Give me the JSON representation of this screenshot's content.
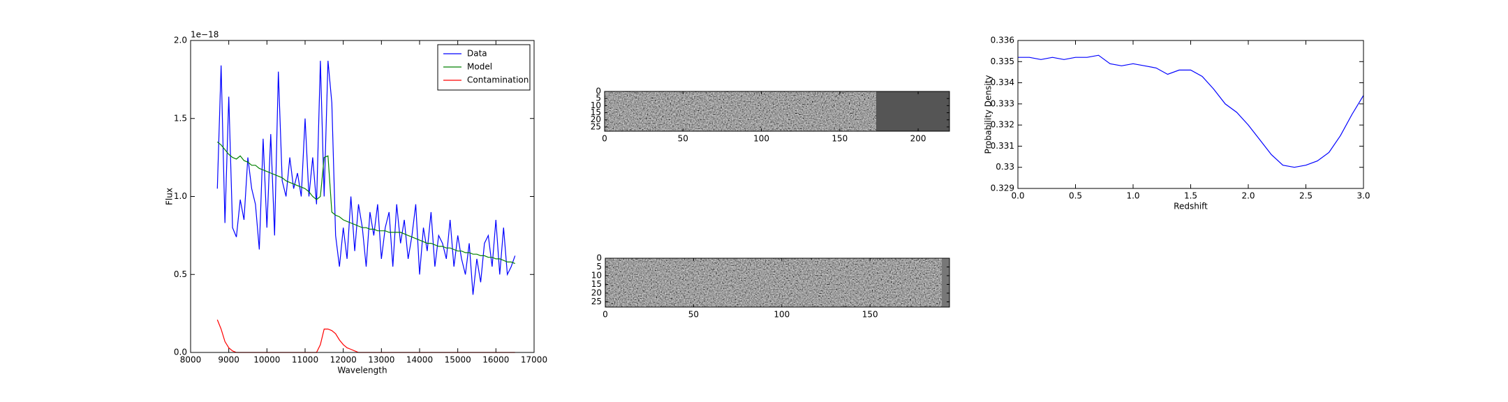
{
  "chart_data": [
    {
      "type": "line",
      "xlabel": "Wavelength",
      "ylabel": "Flux",
      "offset_label": "1e−18",
      "legend": "upper right",
      "xlim": [
        8000,
        17000
      ],
      "xticks": [
        8000,
        9000,
        10000,
        11000,
        12000,
        13000,
        14000,
        15000,
        16000,
        17000
      ],
      "ylim": [
        0,
        2.0
      ],
      "yticks": [
        {
          "value": 0,
          "label": "0.0"
        },
        0.5,
        {
          "value": 1,
          "label": "1.0"
        },
        1.5,
        {
          "value": 2,
          "label": "2.0"
        }
      ],
      "x": [
        8700,
        8800,
        8900,
        9000,
        9100,
        9200,
        9300,
        9400,
        9500,
        9600,
        9700,
        9800,
        9900,
        10000,
        10100,
        10200,
        10300,
        10400,
        10500,
        10600,
        10700,
        10800,
        10900,
        11000,
        11100,
        11200,
        11300,
        11400,
        11500,
        11600,
        11700,
        11800,
        11900,
        12000,
        12100,
        12200,
        12300,
        12400,
        12500,
        12600,
        12700,
        12800,
        12900,
        13000,
        13100,
        13200,
        13300,
        13400,
        13500,
        13600,
        13700,
        13800,
        13900,
        14000,
        14100,
        14200,
        14300,
        14400,
        14500,
        14600,
        14700,
        14800,
        14900,
        15000,
        15100,
        15200,
        15300,
        15400,
        15500,
        15600,
        15700,
        15800,
        15900,
        16000,
        16100,
        16200,
        16300,
        16400,
        16500
      ],
      "series": [
        {
          "name": "Data",
          "color": "#0000ff",
          "values": [
            1.05,
            1.84,
            0.83,
            1.64,
            0.8,
            0.74,
            0.98,
            0.85,
            1.25,
            1.05,
            0.95,
            0.66,
            1.37,
            0.8,
            1.4,
            0.75,
            1.8,
            1.1,
            1.0,
            1.25,
            1.05,
            1.15,
            1.0,
            1.5,
            1.0,
            1.25,
            0.95,
            1.87,
            1.0,
            1.87,
            1.6,
            0.75,
            0.55,
            0.8,
            0.6,
            1.0,
            0.65,
            0.95,
            0.8,
            0.55,
            0.9,
            0.75,
            0.95,
            0.6,
            0.8,
            0.9,
            0.55,
            0.95,
            0.7,
            0.85,
            0.6,
            0.75,
            0.95,
            0.5,
            0.8,
            0.65,
            0.9,
            0.55,
            0.75,
            0.7,
            0.6,
            0.85,
            0.55,
            0.75,
            0.6,
            0.5,
            0.7,
            0.37,
            0.6,
            0.45,
            0.7,
            0.75,
            0.55,
            0.85,
            0.5,
            0.8,
            0.5,
            0.55,
            0.62
          ]
        },
        {
          "name": "Model",
          "color": "#008000",
          "values": [
            1.35,
            1.33,
            1.3,
            1.27,
            1.25,
            1.24,
            1.26,
            1.23,
            1.22,
            1.2,
            1.2,
            1.18,
            1.17,
            1.16,
            1.15,
            1.14,
            1.13,
            1.12,
            1.1,
            1.09,
            1.08,
            1.07,
            1.06,
            1.05,
            1.03,
            1.0,
            0.98,
            1.0,
            1.25,
            1.26,
            0.9,
            0.88,
            0.87,
            0.85,
            0.84,
            0.83,
            0.82,
            0.81,
            0.8,
            0.8,
            0.79,
            0.79,
            0.78,
            0.78,
            0.78,
            0.77,
            0.77,
            0.77,
            0.77,
            0.76,
            0.75,
            0.74,
            0.73,
            0.72,
            0.71,
            0.7,
            0.7,
            0.69,
            0.68,
            0.68,
            0.67,
            0.67,
            0.66,
            0.65,
            0.65,
            0.64,
            0.64,
            0.63,
            0.63,
            0.62,
            0.62,
            0.61,
            0.61,
            0.6,
            0.6,
            0.59,
            0.58,
            0.58,
            0.57
          ]
        },
        {
          "name": "Contamination",
          "color": "#ff0000",
          "values": [
            0.21,
            0.15,
            0.07,
            0.03,
            0.01,
            0,
            0,
            0,
            0,
            0,
            0,
            0,
            0,
            0,
            0,
            0,
            0,
            0,
            0,
            0,
            0,
            0,
            0,
            0,
            0,
            0,
            0,
            0.05,
            0.15,
            0.15,
            0.14,
            0.12,
            0.08,
            0.05,
            0.03,
            0.02,
            0.01,
            0,
            0,
            0,
            0,
            0,
            0,
            0,
            0,
            0,
            0,
            0,
            0,
            0,
            0,
            0,
            0,
            0,
            0,
            0,
            0,
            0,
            0,
            0,
            0,
            0,
            0,
            0,
            0,
            0,
            0,
            0,
            0,
            0,
            0,
            0,
            0,
            0,
            0,
            0,
            0,
            0,
            0
          ]
        }
      ]
    },
    {
      "type": "image",
      "xlim": [
        0,
        220
      ],
      "xticks": [
        0,
        50,
        100,
        150,
        200
      ],
      "ylim": [
        28,
        0
      ],
      "yticks": [
        0,
        5,
        10,
        15,
        20,
        25
      ]
    },
    {
      "type": "image",
      "xlim": [
        0,
        195
      ],
      "xticks": [
        0,
        50,
        100,
        150
      ],
      "ylim": [
        28,
        0
      ],
      "yticks": [
        0,
        5,
        10,
        15,
        20,
        25
      ]
    },
    {
      "type": "line",
      "xlabel": "Redshift",
      "ylabel": "Probability Density",
      "xlim": [
        0,
        3.0
      ],
      "xticks": [
        {
          "value": 0,
          "label": "0.0"
        },
        0.5,
        {
          "value": 1,
          "label": "1.0"
        },
        1.5,
        {
          "value": 2,
          "label": "2.0"
        },
        2.5,
        {
          "value": 3,
          "label": "3.0"
        }
      ],
      "ylim": [
        0.329,
        0.336
      ],
      "yticks": [
        0.329,
        0.33,
        0.331,
        0.332,
        0.333,
        0.334,
        0.335,
        0.336
      ],
      "x": [
        0,
        0.1,
        0.2,
        0.3,
        0.4,
        0.5,
        0.6,
        0.7,
        0.8,
        0.9,
        1.0,
        1.1,
        1.2,
        1.3,
        1.4,
        1.5,
        1.6,
        1.7,
        1.8,
        1.9,
        2.0,
        2.1,
        2.2,
        2.3,
        2.4,
        2.5,
        2.6,
        2.7,
        2.8,
        2.9,
        3.0
      ],
      "series": [
        {
          "color": "#0000ff",
          "values": [
            0.3352,
            0.3352,
            0.3351,
            0.3352,
            0.3351,
            0.3352,
            0.3352,
            0.3353,
            0.3349,
            0.3348,
            0.3349,
            0.3348,
            0.3347,
            0.3344,
            0.3346,
            0.3346,
            0.3343,
            0.3337,
            0.333,
            0.3326,
            0.332,
            0.3313,
            0.3306,
            0.3301,
            0.33,
            0.3301,
            0.3303,
            0.3307,
            0.3315,
            0.3325,
            0.3334
          ]
        }
      ]
    }
  ]
}
